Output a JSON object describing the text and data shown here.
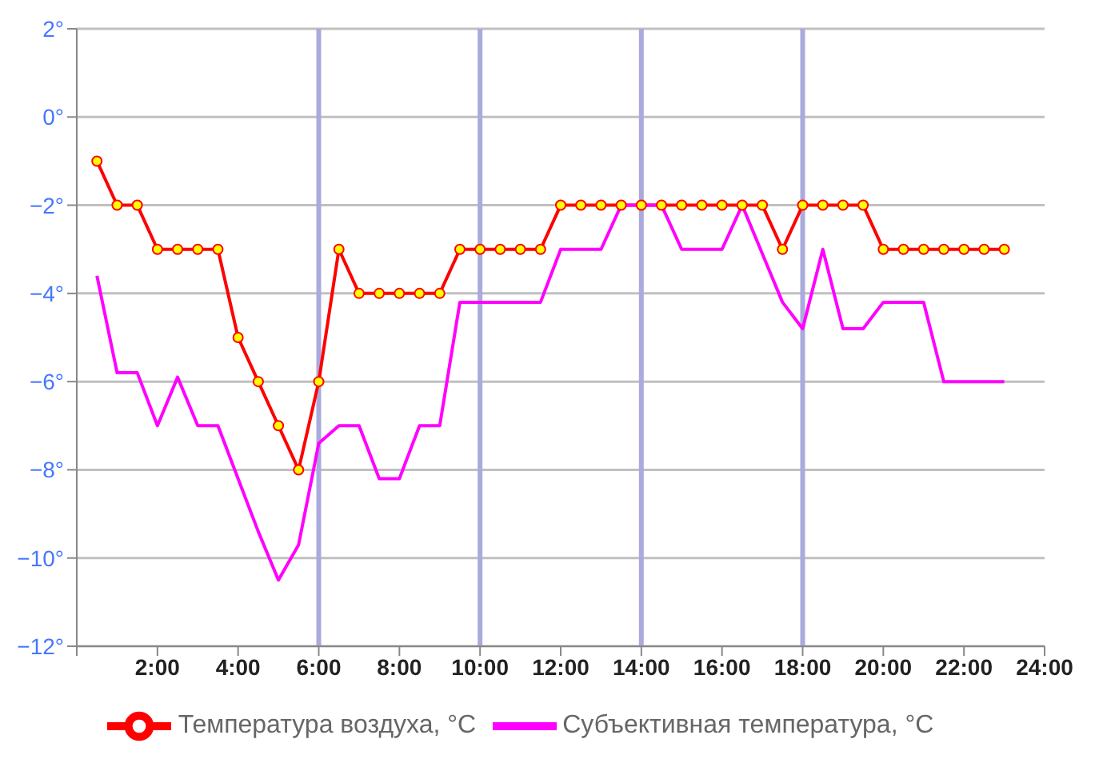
{
  "chart_data": {
    "type": "line",
    "x": [
      0.5,
      1,
      1.5,
      2,
      2.5,
      3,
      3.5,
      4,
      4.5,
      5,
      5.5,
      6,
      6.5,
      7,
      7.5,
      8,
      8.5,
      9,
      9.5,
      10,
      10.5,
      11,
      11.5,
      12,
      12.5,
      13,
      13.5,
      14,
      14.5,
      15,
      15.5,
      16,
      16.5,
      17,
      17.5,
      18,
      18.5,
      19,
      19.5,
      20,
      20.5,
      21,
      21.5,
      22,
      22.5,
      23
    ],
    "series": [
      {
        "name": "Температура воздуха, °C",
        "color": "#ff0000",
        "marker": "circle",
        "values": [
          -1,
          -2,
          -2,
          -3,
          -3,
          -3,
          -3,
          -5,
          -6,
          -7,
          -8,
          -6,
          -3,
          -4,
          -4,
          -4,
          -4,
          -4,
          -3,
          -3,
          -3,
          -3,
          -3,
          -2,
          -2,
          -2,
          -2,
          -2,
          -2,
          -2,
          -2,
          -2,
          -2,
          -2,
          -3,
          -2,
          -2,
          -2,
          -2,
          -3,
          -3,
          -3,
          -3,
          -3,
          -3,
          -3
        ]
      },
      {
        "name": "Субъективная температура, °C",
        "color": "#ff00ff",
        "marker": "none",
        "values": [
          -3.6,
          -5.8,
          -5.8,
          -7,
          -5.9,
          -7,
          -7,
          -8.2,
          -9.4,
          -10.5,
          -9.7,
          -7.4,
          -7,
          -7,
          -8.2,
          -8.2,
          -7,
          -7,
          -4.2,
          -4.2,
          -4.2,
          -4.2,
          -4.2,
          -3,
          -3,
          -3,
          -2,
          -2,
          -2,
          -3,
          -3,
          -3,
          -2,
          -3.1,
          -4.2,
          -4.8,
          -3,
          -4.8,
          -4.8,
          -4.2,
          -4.2,
          -4.2,
          -6,
          -6,
          -6,
          -6
        ]
      }
    ],
    "xlim": [
      0,
      24
    ],
    "xticks": [
      {
        "value": 0,
        "label": null
      },
      {
        "value": 2,
        "label": "2:00"
      },
      {
        "value": 4,
        "label": "4:00"
      },
      {
        "value": 6,
        "label": "6:00"
      },
      {
        "value": 8,
        "label": "8:00"
      },
      {
        "value": 10,
        "label": "10:00"
      },
      {
        "value": 12,
        "label": "12:00"
      },
      {
        "value": 14,
        "label": "14:00"
      },
      {
        "value": 16,
        "label": "16:00"
      },
      {
        "value": 18,
        "label": "18:00"
      },
      {
        "value": 20,
        "label": "20:00"
      },
      {
        "value": 22,
        "label": "22:00"
      },
      {
        "value": 24,
        "label": "24:00"
      }
    ],
    "ylim": [
      -12,
      2
    ],
    "yticks": [
      {
        "value": -12,
        "label": "−12°"
      },
      {
        "value": -10,
        "label": "−10°"
      },
      {
        "value": -8,
        "label": "−8°"
      },
      {
        "value": -6,
        "label": "−6°"
      },
      {
        "value": -4,
        "label": "−4°"
      },
      {
        "value": -2,
        "label": "−2°"
      },
      {
        "value": 0,
        "label": "0°"
      },
      {
        "value": 2,
        "label": "2°"
      }
    ],
    "ref_lines": [
      {
        "axis": "x",
        "value": 6,
        "color": "#aaaadd"
      },
      {
        "axis": "x",
        "value": 10,
        "color": "#aaaadd"
      },
      {
        "axis": "x",
        "value": 14,
        "color": "#aaaadd"
      },
      {
        "axis": "x",
        "value": 18,
        "color": "#aaaadd"
      }
    ],
    "grid": "y",
    "legend": "bottom",
    "line_style": "solid"
  }
}
